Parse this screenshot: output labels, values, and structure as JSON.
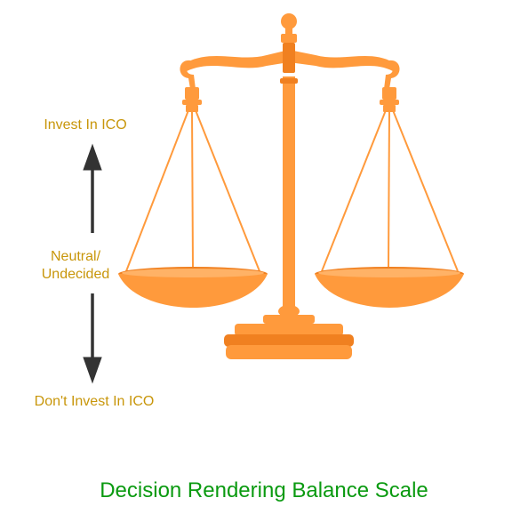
{
  "labels": {
    "top": "Invest In ICO",
    "middle_line1": "Neutral/",
    "middle_line2": "Undecided",
    "bottom": "Don't Invest In ICO"
  },
  "caption": "Decision Rendering Balance Scale",
  "colors": {
    "scale_orange": "#ff9a3c",
    "scale_shadow": "#f08020",
    "label_gold": "#c8960a",
    "caption_green": "#0a9a10",
    "arrow": "#333333"
  }
}
